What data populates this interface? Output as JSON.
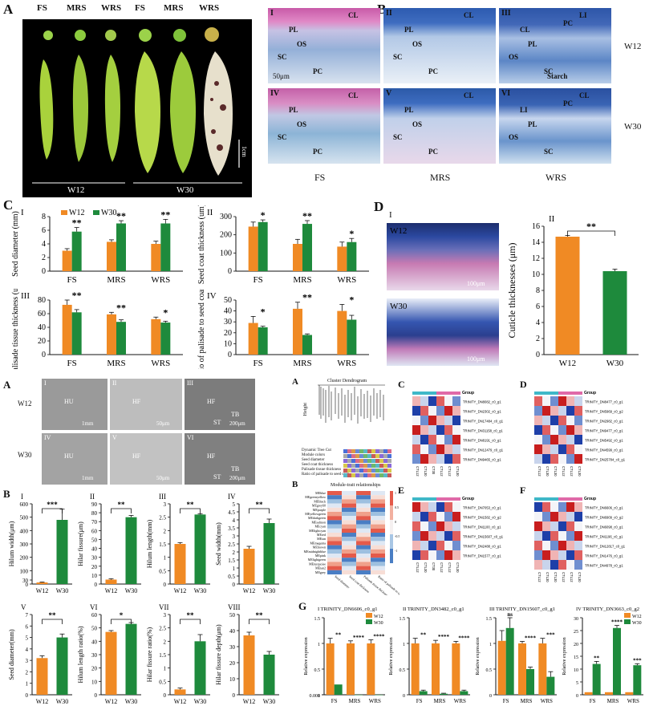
{
  "labels": {
    "A_top": "A",
    "B_top": "B",
    "C_top": "C",
    "D_top": "D",
    "A_bot": "A",
    "B_bot": "B",
    "A_mid": "A",
    "B_mid": "B",
    "C_hm": "C",
    "D_hm": "D",
    "E_hm": "E",
    "F_hm": "F",
    "G": "G"
  },
  "panelA": {
    "stages": [
      "FS",
      "MRS",
      "WRS",
      "FS",
      "MRS",
      "WRS"
    ],
    "groups": [
      "W12",
      "W30"
    ],
    "scale": "1cm"
  },
  "panelB": {
    "tiles": [
      {
        "num": "I",
        "marks": [
          "CL",
          "PL",
          "OS",
          "SC",
          "PC"
        ],
        "scale": "50μm"
      },
      {
        "num": "II",
        "marks": [
          "CL",
          "PL",
          "OS",
          "SC",
          "PC"
        ],
        "scale": ""
      },
      {
        "num": "III",
        "marks": [
          "LI",
          "CL",
          "PL",
          "OS",
          "SC",
          "PC",
          "Starch"
        ],
        "scale": ""
      },
      {
        "num": "IV",
        "marks": [
          "CL",
          "PL",
          "OS",
          "SC",
          "PC"
        ],
        "scale": ""
      },
      {
        "num": "V",
        "marks": [
          "CL",
          "PL",
          "OS",
          "SC",
          "PC"
        ],
        "scale": ""
      },
      {
        "num": "VI",
        "marks": [
          "CL",
          "LI",
          "PL",
          "OS",
          "SC",
          "PC"
        ],
        "scale": ""
      }
    ],
    "rows": [
      "W12",
      "W30"
    ],
    "cols": [
      "FS",
      "MRS",
      "WRS"
    ]
  },
  "panelD": {
    "img_labels": [
      "W12",
      "W30"
    ],
    "scale": "100μm",
    "sub": [
      "I",
      "II"
    ]
  },
  "panelSEM": {
    "tiles": [
      {
        "num": "I",
        "marks": [
          "HU"
        ],
        "scale": "1mm"
      },
      {
        "num": "II",
        "marks": [
          "HF"
        ],
        "scale": "50μm"
      },
      {
        "num": "III",
        "marks": [
          "HF",
          "TB",
          "ST"
        ],
        "scale": "200μm"
      },
      {
        "num": "IV",
        "marks": [
          "HU"
        ],
        "scale": "1mm"
      },
      {
        "num": "V",
        "marks": [
          "HF"
        ],
        "scale": "50μm"
      },
      {
        "num": "VI",
        "marks": [
          "HF",
          "TB",
          "ST"
        ],
        "scale": "200μm"
      }
    ],
    "rows": [
      "W12",
      "W30"
    ]
  },
  "panelMidA": {
    "title": "Cluster Dendrogram",
    "ylabel": "Height",
    "rows": [
      "Dynamic Tree Cut",
      "Module colors",
      "Seed diameter",
      "Seed coat thickness",
      "Palisade tissue thickness",
      "Ratio of palisade to seed coat"
    ]
  },
  "panelMidB": {
    "title": "Module-trait relationships",
    "modules": [
      "MEblue",
      "MEgreenyellow",
      "MEblack",
      "MEgrey60",
      "MEpurple",
      "MEyellowgreen",
      "MEdarkgreen",
      "MEsalmon",
      "MEcyan",
      "MElightcyan",
      "MEred",
      "MEtan",
      "MEmagenta",
      "MEbrown",
      "MEmidnightblue",
      "MEpink",
      "MElightgreen",
      "MEturquoise",
      "MEtan2",
      "MEgrey"
    ],
    "traits": [
      "Seed diameter",
      "Seed coat thickness",
      "Palisade tissue thickness",
      "Ratio of palisade to seed coat"
    ],
    "scale": [
      "1",
      "0.5",
      "0",
      "-0.5",
      "-1"
    ]
  },
  "heatmaps": {
    "C": {
      "group": "Group",
      "genes": [
        "TRINITY_DN8082_c0_g1",
        "TRINITY_DN2302_c0_g1",
        "TRINITY_DN17484_c0_g1",
        "TRINITY_DN31158_c0_g1",
        "TRINITY_DN8191_c0_g1",
        "TRINITY_DN12479_c0_g1",
        "TRINITY_DN9465_c0_g1"
      ],
      "cols": [
        "CTL12",
        "CTL30",
        "CT30",
        "CTL12",
        "CTL12",
        "CTL30"
      ]
    },
    "D": {
      "group": "Group",
      "genes": [
        "TRINITY_DN8477_c0_g1",
        "TRINITY_DN5969_c0_g2",
        "TRINITY_DN2982_c0_g1",
        "TRINITY_DN9477_c0_g1",
        "TRINITY_DN5492_c0_g1",
        "TRINITY_DN4599_c0_g1",
        "TRINITY_DN25784_c0_g1"
      ],
      "cols": [
        "CTL12",
        "CTL30",
        "CTL30",
        "CTL12",
        "CTL12",
        "CTL30"
      ]
    },
    "E": {
      "group": "Group",
      "genes": [
        "TRINITY_DN7053_c0_g1",
        "TRINITY_DN1582_c0_g2",
        "TRINITY_DN1100_c0_g1",
        "TRINITY_DN15607_c0_g1",
        "TRINITY_DN2488_c0_g1",
        "TRINITY_DN1577_c0_g1"
      ],
      "cols": [
        "CTL12",
        "CTL30",
        "CT30",
        "CTL12",
        "CTL12",
        "CTL30"
      ]
    },
    "F": {
      "group": "Group",
      "genes": [
        "TRINITY_DN6606_c0_g1",
        "TRINITY_DN6909_c0_g2",
        "TRINITY_DN6098_c0_g1",
        "TRINITY_DN1196_c0_g1",
        "TRINITY_DN12817_c0_g1",
        "TRINITY_DN1476_c0_g1",
        "TRINITY_DN4978_c0_g1"
      ],
      "cols": [
        "CTL12",
        "CTL30",
        "CTL30",
        "CTL12",
        "CTL12",
        "CTL30"
      ]
    }
  },
  "chart_data": [
    {
      "id": "C-I",
      "type": "bar",
      "title": "I",
      "ylabel": "Seed diameter (mm)",
      "categories": [
        "FS",
        "MRS",
        "WRS"
      ],
      "ylim": [
        0,
        8
      ],
      "yticks": [
        0,
        2,
        4,
        6,
        8
      ],
      "series": [
        {
          "name": "W12",
          "values": [
            3.0,
            4.3,
            4.0
          ],
          "err": [
            0.3,
            0.3,
            0.4
          ]
        },
        {
          "name": "W30",
          "values": [
            5.8,
            7.0,
            7.0
          ],
          "err": [
            0.6,
            0.4,
            0.6
          ]
        }
      ],
      "sig": [
        "**",
        "**",
        "**"
      ],
      "legend": "top-left"
    },
    {
      "id": "C-II",
      "type": "bar",
      "title": "II",
      "ylabel": "Seed coat thickness (um)",
      "categories": [
        "FS",
        "MRS",
        "WRS"
      ],
      "ylim": [
        0,
        300
      ],
      "yticks": [
        0,
        100,
        200,
        300
      ],
      "series": [
        {
          "name": "W12",
          "values": [
            245,
            150,
            135
          ],
          "err": [
            25,
            25,
            25
          ]
        },
        {
          "name": "W30",
          "values": [
            270,
            260,
            160
          ],
          "err": [
            12,
            18,
            20
          ]
        }
      ],
      "sig": [
        "*",
        "**",
        "*"
      ]
    },
    {
      "id": "C-III",
      "type": "bar",
      "title": "III",
      "ylabel": "Palisade tissue thickness (um)",
      "categories": [
        "FS",
        "MRS",
        "WRS"
      ],
      "ylim": [
        0,
        80
      ],
      "yticks": [
        0,
        20,
        40,
        60,
        80
      ],
      "series": [
        {
          "name": "W12",
          "values": [
            73,
            59,
            52
          ],
          "err": [
            8,
            3,
            3
          ]
        },
        {
          "name": "W30",
          "values": [
            62,
            48,
            47
          ],
          "err": [
            4,
            3,
            2
          ]
        }
      ],
      "sig": [
        "**",
        "**",
        "*"
      ]
    },
    {
      "id": "C-IV",
      "type": "bar",
      "title": "IV",
      "ylabel": "Ratio of palisade to seed coat (%)",
      "categories": [
        "FS",
        "MRS",
        "WRS"
      ],
      "ylim": [
        0,
        50
      ],
      "yticks": [
        0,
        10,
        20,
        30,
        40,
        50
      ],
      "series": [
        {
          "name": "W12",
          "values": [
            29,
            42,
            40
          ],
          "err": [
            6,
            6,
            6
          ]
        },
        {
          "name": "W30",
          "values": [
            25,
            18,
            32
          ],
          "err": [
            1,
            1,
            4
          ]
        }
      ],
      "sig": [
        "*",
        "**",
        "*"
      ]
    },
    {
      "id": "D-II",
      "type": "bar",
      "title": "II",
      "ylabel": "Cuticle thicknesses (μm)",
      "categories": [
        "W12",
        "W30"
      ],
      "ylim": [
        0,
        16
      ],
      "yticks": [
        0,
        2,
        4,
        6,
        8,
        10,
        12,
        14,
        16
      ],
      "values": [
        14.7,
        10.4
      ],
      "err": [
        0.15,
        0.25
      ],
      "sig": "**"
    },
    {
      "id": "B-I",
      "type": "bar",
      "title": "I",
      "ylabel": "Hilum width(μm)",
      "categories": [
        "W12",
        "W30"
      ],
      "ylim": [
        0,
        600
      ],
      "yticks": [
        0,
        30,
        100,
        200,
        300,
        400,
        500,
        600
      ],
      "values": [
        12,
        480
      ],
      "err": [
        3,
        80
      ],
      "sig": "***"
    },
    {
      "id": "B-II",
      "type": "bar",
      "title": "II",
      "ylabel": "Hilar fissure(μm)",
      "categories": [
        "W12",
        "W30"
      ],
      "ylim": [
        0,
        90
      ],
      "yticks": [
        0,
        10,
        20,
        30,
        40,
        50,
        60,
        70,
        80,
        90
      ],
      "values": [
        5,
        75
      ],
      "err": [
        1,
        2
      ],
      "sig": "**"
    },
    {
      "id": "B-III",
      "type": "bar",
      "title": "III",
      "ylabel": "Hilum length(mm)",
      "categories": [
        "W12",
        "W30"
      ],
      "ylim": [
        0,
        3.0
      ],
      "yticks": [
        0,
        0.5,
        1.0,
        1.5,
        2.0,
        2.5,
        3.0
      ],
      "values": [
        1.5,
        2.6
      ],
      "err": [
        0.05,
        0.03
      ],
      "sig": "**"
    },
    {
      "id": "B-IV",
      "type": "bar",
      "title": "IV",
      "ylabel": "Seed width(mm)",
      "categories": [
        "W12",
        "W30"
      ],
      "ylim": [
        0,
        5.0
      ],
      "yticks": [
        0,
        0.5,
        1.0,
        1.5,
        2.0,
        2.5,
        3.0,
        3.5,
        4.0,
        4.5,
        5.0
      ],
      "values": [
        2.2,
        3.8
      ],
      "err": [
        0.15,
        0.25
      ],
      "sig": "**"
    },
    {
      "id": "B-V",
      "type": "bar",
      "title": "V",
      "ylabel": "Seed diameter(mm)",
      "categories": [
        "W12",
        "W30"
      ],
      "ylim": [
        0,
        7
      ],
      "yticks": [
        0,
        1,
        2,
        3,
        4,
        5,
        6,
        7
      ],
      "values": [
        3.2,
        5.0
      ],
      "err": [
        0.2,
        0.3
      ],
      "sig": "**"
    },
    {
      "id": "B-VI",
      "type": "bar",
      "title": "VI",
      "ylabel": "Hilum length ratio(%)",
      "categories": [
        "W12",
        "W30"
      ],
      "ylim": [
        0,
        60
      ],
      "yticks": [
        0,
        10,
        20,
        30,
        40,
        50,
        60
      ],
      "values": [
        47,
        53
      ],
      "err": [
        1,
        1
      ],
      "sig": "*"
    },
    {
      "id": "B-VII",
      "type": "bar",
      "title": "VII",
      "ylabel": "Hilar fissure ratio(%)",
      "categories": [
        "W12",
        "W30"
      ],
      "ylim": [
        0,
        3.0
      ],
      "yticks": [
        0,
        0.5,
        1.0,
        1.5,
        2.0,
        2.5,
        3.0
      ],
      "values": [
        0.2,
        2.0
      ],
      "err": [
        0.05,
        0.25
      ],
      "sig": "**"
    },
    {
      "id": "B-VIII",
      "type": "bar",
      "title": "VIII",
      "ylabel": "Hilar fissure depth(μm)",
      "categories": [
        "W12",
        "W30"
      ],
      "ylim": [
        0,
        50
      ],
      "yticks": [
        0,
        10,
        20,
        30,
        40,
        50
      ],
      "values": [
        37,
        25
      ],
      "err": [
        2,
        2
      ],
      "sig": "**"
    },
    {
      "id": "G-I",
      "type": "bar",
      "title": "TRINITY_DN6606_c0_g1",
      "num": "I",
      "ylabel": "Relative expression",
      "categories": [
        "FS",
        "MRS",
        "WRS"
      ],
      "yticks": [
        0,
        0.001,
        0.5,
        1.0,
        1.5
      ],
      "series": [
        {
          "name": "W12",
          "values": [
            1.0,
            1.0,
            1.0
          ],
          "err": [
            0.1,
            0.05,
            0.07
          ]
        },
        {
          "name": "W30",
          "values": [
            0.2,
            0.001,
            0.001
          ]
        }
      ],
      "sig": [
        "**",
        "****",
        "****"
      ],
      "legend": "top-right"
    },
    {
      "id": "G-II",
      "type": "bar",
      "title": "TRINITY_DN3482_c0_g1",
      "num": "II",
      "ylabel": "Relative expression",
      "categories": [
        "FS",
        "MRS",
        "WRS"
      ],
      "ylim": [
        0,
        1.5
      ],
      "yticks": [
        0,
        0.5,
        1.0,
        1.5
      ],
      "series": [
        {
          "name": "W12",
          "values": [
            1.0,
            1.0,
            1.0
          ],
          "err": [
            0.1,
            0.06,
            0.04
          ]
        },
        {
          "name": "W30",
          "values": [
            0.07,
            0.02,
            0.07
          ],
          "err": [
            0.02,
            0.01,
            0.02
          ]
        }
      ],
      "sig": [
        "**",
        "****",
        "****"
      ]
    },
    {
      "id": "G-III",
      "type": "bar",
      "title": "TRINITY_DN15607_c0_g1",
      "num": "III",
      "ylabel": "Relative expression",
      "categories": [
        "FS",
        "MRS",
        "WRS"
      ],
      "ylim": [
        0,
        1.5
      ],
      "yticks": [
        0,
        0.5,
        1.0,
        1.5
      ],
      "series": [
        {
          "name": "W12",
          "values": [
            1.05,
            1.0,
            1.0
          ],
          "err": [
            0.2,
            0.04,
            0.1
          ]
        },
        {
          "name": "W30",
          "values": [
            1.3,
            0.5,
            0.35
          ],
          "err": [
            0.2,
            0.04,
            0.1
          ]
        }
      ],
      "sig": [
        "ns",
        "****",
        "***"
      ]
    },
    {
      "id": "G-IV",
      "type": "bar",
      "title": "TRINITY_DN3663_c0_g2",
      "num": "IV",
      "ylabel": "Relative expression",
      "categories": [
        "FS",
        "MRS",
        "WRS"
      ],
      "ylim": [
        0,
        30
      ],
      "yticks": [
        0,
        5,
        10,
        15,
        20,
        25,
        30
      ],
      "series": [
        {
          "name": "W12",
          "values": [
            1.0,
            1.0,
            1.0
          ]
        },
        {
          "name": "W30",
          "values": [
            12,
            26,
            11.5
          ],
          "err": [
            1,
            1,
            0.6
          ]
        }
      ],
      "sig": [
        "**",
        "****",
        "***"
      ],
      "legend": "top-right"
    }
  ],
  "colors": {
    "W12": "#f08a24",
    "W30": "#1e8a3c",
    "accent": "#111111"
  }
}
